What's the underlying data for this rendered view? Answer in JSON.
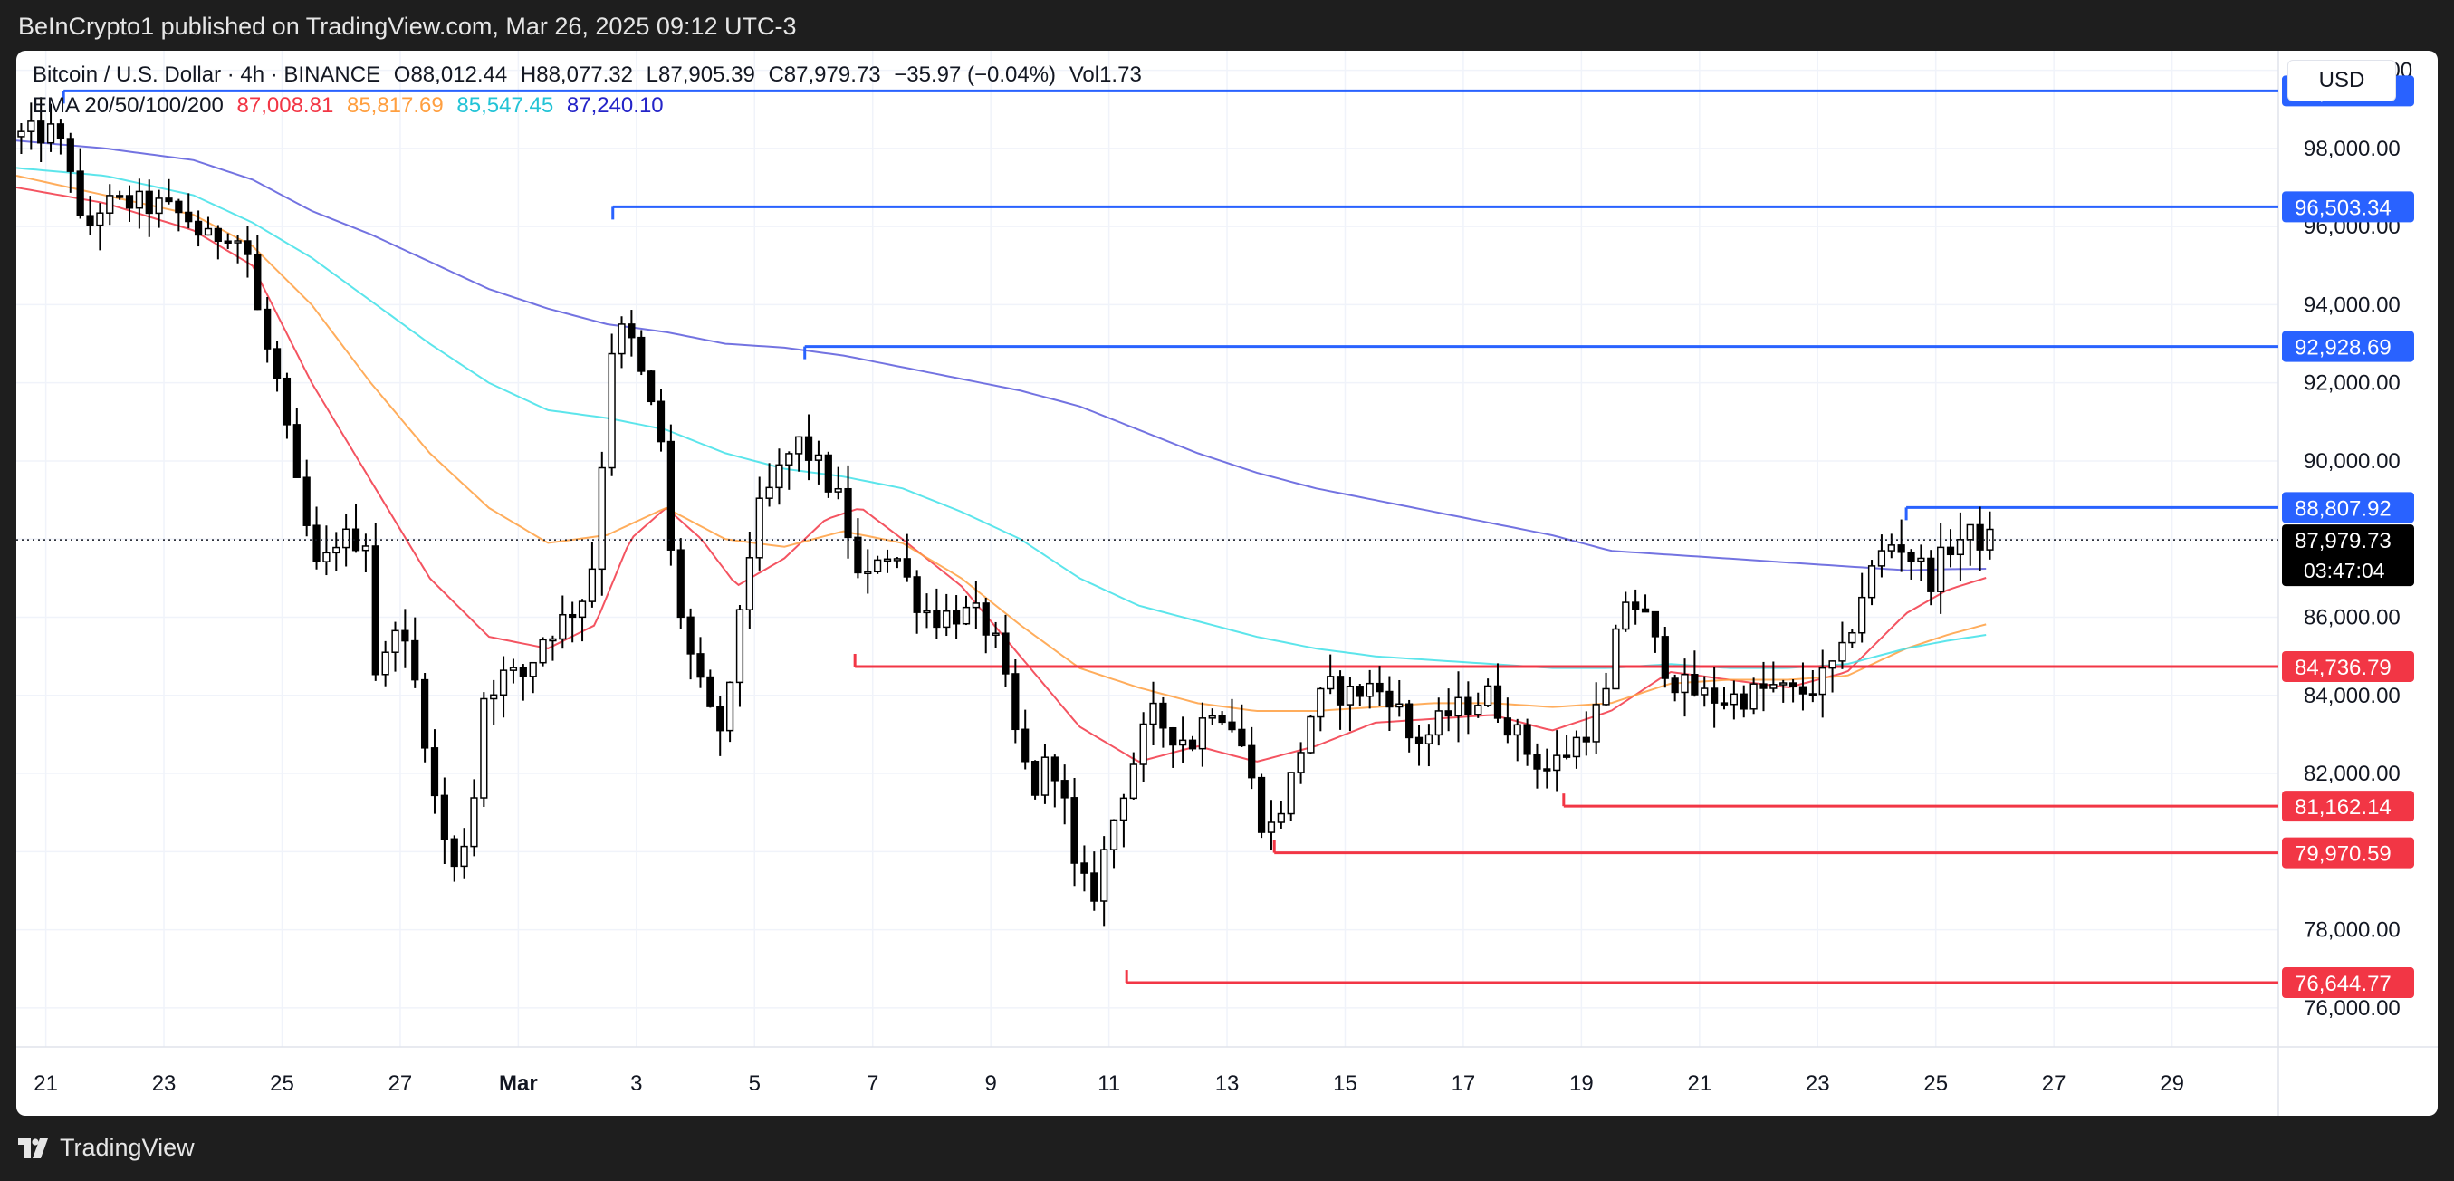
{
  "header": {
    "published_text": "BeInCrypto1 published on TradingView.com, Mar 26, 2025 09:12 UTC-3"
  },
  "legend": {
    "symbol": "Bitcoin / U.S. Dollar · 4h · BINANCE",
    "open": "O88,012.44",
    "high": "H88,077.32",
    "low": "L87,905.39",
    "close": "C87,979.73",
    "change": "−35.97 (−0.04%)",
    "volume": "Vol1.73",
    "ema_label": "EMA 20/50/100/200",
    "ema_values": [
      "87,008.81",
      "85,817.69",
      "85,547.45",
      "87,240.10"
    ]
  },
  "currency_button": "USD",
  "footer": {
    "brand": "TradingView"
  },
  "colors": {
    "up": "#ffffff",
    "down": "#000000",
    "ema20": "#f23645",
    "ema50": "#ff9f40",
    "ema100": "#40e0e8",
    "ema200": "#5b5bdc",
    "resistance": "#2962ff",
    "support": "#f23645",
    "grid": "#f0f3fa"
  },
  "chart_data": {
    "type": "candlestick",
    "title": "Bitcoin / U.S. Dollar · 4h · BINANCE",
    "ylim": [
      75000,
      100500
    ],
    "y_ticks": [
      "76,000.00",
      "78,000.00",
      "80,000.00",
      "82,000.00",
      "84,000.00",
      "86,000.00",
      "88,000.00",
      "90,000.00",
      "92,000.00",
      "94,000.00",
      "96,000.00",
      "98,000.00",
      "100,000.00"
    ],
    "x_ticks": [
      {
        "label": "21",
        "day": -7.5
      },
      {
        "label": "23",
        "day": -5.5
      },
      {
        "label": "25",
        "day": -3.5
      },
      {
        "label": "27",
        "day": -1.5
      },
      {
        "label": "Mar",
        "day": 0.5
      },
      {
        "label": "3",
        "day": 2.5
      },
      {
        "label": "5",
        "day": 4.5
      },
      {
        "label": "7",
        "day": 6.5
      },
      {
        "label": "9",
        "day": 8.5
      },
      {
        "label": "11",
        "day": 10.5
      },
      {
        "label": "13",
        "day": 12.5
      },
      {
        "label": "15",
        "day": 14.5
      },
      {
        "label": "17",
        "day": 16.5
      },
      {
        "label": "19",
        "day": 18.5
      },
      {
        "label": "21",
        "day": 20.5
      },
      {
        "label": "23",
        "day": 22.5
      },
      {
        "label": "25",
        "day": 24.5
      },
      {
        "label": "27",
        "day": 26.5
      },
      {
        "label": "29",
        "day": 28.5
      }
    ],
    "x_range": [
      -8.0,
      30.3
    ],
    "candle_range": [
      -8.0,
      25.35
    ],
    "last_price": {
      "value": 87979.73,
      "label": "87,979.73",
      "countdown": "03:47:04"
    },
    "resistance_levels": [
      {
        "value": 99472.29,
        "label": "99,472.29",
        "start_day": -7.2
      },
      {
        "value": 96503.34,
        "label": "96,503.34",
        "start_day": 2.1
      },
      {
        "value": 92928.69,
        "label": "92,928.69",
        "start_day": 5.35
      },
      {
        "value": 88807.92,
        "label": "88,807.92",
        "start_day": 24.0
      }
    ],
    "support_levels": [
      {
        "value": 84736.79,
        "label": "84,736.79",
        "start_day": 6.2
      },
      {
        "value": 81162.14,
        "label": "81,162.14",
        "start_day": 18.2
      },
      {
        "value": 79970.59,
        "label": "79,970.59",
        "start_day": 13.3
      },
      {
        "value": 76644.77,
        "label": "76,644.77",
        "start_day": 10.8
      }
    ],
    "close_path": [
      [
        -8.0,
        98300
      ],
      [
        -7.3,
        98400
      ],
      [
        -7.0,
        97600
      ],
      [
        -6.8,
        95700
      ],
      [
        -6.5,
        96500
      ],
      [
        -6.0,
        96600
      ],
      [
        -5.5,
        96500
      ],
      [
        -5.0,
        96200
      ],
      [
        -4.7,
        95600
      ],
      [
        -4.3,
        96000
      ],
      [
        -4.0,
        95300
      ],
      [
        -3.8,
        93500
      ],
      [
        -3.5,
        92000
      ],
      [
        -3.2,
        89500
      ],
      [
        -2.8,
        87000
      ],
      [
        -2.5,
        88000
      ],
      [
        -2.0,
        88000
      ],
      [
        -1.8,
        84000
      ],
      [
        -1.5,
        86000
      ],
      [
        -1.1,
        84000
      ],
      [
        -0.8,
        81000
      ],
      [
        -0.5,
        79500
      ],
      [
        -0.2,
        81000
      ],
      [
        0.0,
        84000
      ],
      [
        0.3,
        84500
      ],
      [
        0.7,
        84500
      ],
      [
        1.0,
        85500
      ],
      [
        1.4,
        86000
      ],
      [
        1.8,
        86800
      ],
      [
        2.0,
        90000
      ],
      [
        2.2,
        93500
      ],
      [
        2.5,
        93000
      ],
      [
        2.8,
        91500
      ],
      [
        3.0,
        90500
      ],
      [
        3.2,
        87000
      ],
      [
        3.5,
        85000
      ],
      [
        3.8,
        83500
      ],
      [
        4.1,
        83000
      ],
      [
        4.3,
        86000
      ],
      [
        4.6,
        88500
      ],
      [
        5.0,
        89700
      ],
      [
        5.3,
        90500
      ],
      [
        5.6,
        90000
      ],
      [
        6.0,
        89000
      ],
      [
        6.2,
        88000
      ],
      [
        6.4,
        86500
      ],
      [
        6.7,
        87800
      ],
      [
        7.0,
        87500
      ],
      [
        7.3,
        86500
      ],
      [
        7.6,
        86000
      ],
      [
        8.0,
        86100
      ],
      [
        8.4,
        86000
      ],
      [
        8.7,
        85200
      ],
      [
        9.0,
        83000
      ],
      [
        9.3,
        81500
      ],
      [
        9.6,
        82500
      ],
      [
        9.8,
        81500
      ],
      [
        10.0,
        79500
      ],
      [
        10.3,
        78800
      ],
      [
        10.6,
        80500
      ],
      [
        10.8,
        81500
      ],
      [
        11.0,
        82300
      ],
      [
        11.3,
        83500
      ],
      [
        11.7,
        83000
      ],
      [
        12.0,
        82800
      ],
      [
        12.3,
        83800
      ],
      [
        12.6,
        83500
      ],
      [
        12.9,
        82500
      ],
      [
        13.1,
        81000
      ],
      [
        13.3,
        80500
      ],
      [
        13.6,
        81500
      ],
      [
        14.0,
        83500
      ],
      [
        14.3,
        84200
      ],
      [
        14.6,
        84000
      ],
      [
        15.0,
        84200
      ],
      [
        15.4,
        84000
      ],
      [
        15.7,
        82800
      ],
      [
        16.0,
        83000
      ],
      [
        16.3,
        83500
      ],
      [
        16.7,
        83800
      ],
      [
        17.0,
        84000
      ],
      [
        17.4,
        83200
      ],
      [
        17.7,
        82500
      ],
      [
        18.0,
        82100
      ],
      [
        18.3,
        82500
      ],
      [
        18.7,
        83200
      ],
      [
        19.0,
        84000
      ],
      [
        19.3,
        86500
      ],
      [
        19.6,
        86200
      ],
      [
        19.9,
        85000
      ],
      [
        20.2,
        84300
      ],
      [
        20.6,
        84000
      ],
      [
        21.0,
        83900
      ],
      [
        21.4,
        84000
      ],
      [
        21.8,
        84200
      ],
      [
        22.2,
        84000
      ],
      [
        22.6,
        84300
      ],
      [
        23.0,
        85000
      ],
      [
        23.3,
        86500
      ],
      [
        23.6,
        87500
      ],
      [
        23.9,
        88000
      ],
      [
        24.2,
        87500
      ],
      [
        24.5,
        87000
      ],
      [
        24.8,
        87800
      ],
      [
        25.1,
        88100
      ],
      [
        25.35,
        87979.73
      ]
    ],
    "ema_series": [
      {
        "name": "EMA 20",
        "color": "#f23645",
        "points": [
          [
            -8.0,
            97000
          ],
          [
            -6.5,
            96600
          ],
          [
            -5.0,
            95900
          ],
          [
            -4.0,
            95000
          ],
          [
            -3.0,
            92000
          ],
          [
            -2.0,
            89500
          ],
          [
            -1.0,
            87000
          ],
          [
            0.0,
            85500
          ],
          [
            1.0,
            85200
          ],
          [
            1.8,
            85800
          ],
          [
            2.4,
            88000
          ],
          [
            3.0,
            88800
          ],
          [
            3.6,
            88000
          ],
          [
            4.2,
            86800
          ],
          [
            5.0,
            87500
          ],
          [
            5.7,
            88500
          ],
          [
            6.3,
            88800
          ],
          [
            7.0,
            88000
          ],
          [
            8.0,
            86800
          ],
          [
            9.0,
            85000
          ],
          [
            10.0,
            83200
          ],
          [
            11.0,
            82300
          ],
          [
            12.0,
            82700
          ],
          [
            13.0,
            82300
          ],
          [
            14.0,
            82700
          ],
          [
            15.0,
            83300
          ],
          [
            16.0,
            83400
          ],
          [
            17.0,
            83500
          ],
          [
            18.0,
            83100
          ],
          [
            19.0,
            83600
          ],
          [
            20.0,
            84600
          ],
          [
            21.0,
            84400
          ],
          [
            22.0,
            84200
          ],
          [
            23.0,
            84600
          ],
          [
            24.0,
            86100
          ],
          [
            24.7,
            86700
          ],
          [
            25.35,
            87008.81
          ]
        ]
      },
      {
        "name": "EMA 50",
        "color": "#ff9f40",
        "points": [
          [
            -8.0,
            97300
          ],
          [
            -6.5,
            96800
          ],
          [
            -5.0,
            96300
          ],
          [
            -4.0,
            95500
          ],
          [
            -3.0,
            94000
          ],
          [
            -2.0,
            92000
          ],
          [
            -1.0,
            90200
          ],
          [
            0.0,
            88800
          ],
          [
            1.0,
            87900
          ],
          [
            2.0,
            88100
          ],
          [
            3.0,
            88800
          ],
          [
            4.0,
            88000
          ],
          [
            5.0,
            87800
          ],
          [
            6.0,
            88200
          ],
          [
            7.0,
            87900
          ],
          [
            8.0,
            87000
          ],
          [
            9.0,
            85800
          ],
          [
            10.0,
            84700
          ],
          [
            11.0,
            84200
          ],
          [
            12.0,
            83800
          ],
          [
            13.0,
            83600
          ],
          [
            14.0,
            83600
          ],
          [
            15.0,
            83700
          ],
          [
            16.0,
            83800
          ],
          [
            17.0,
            83800
          ],
          [
            18.0,
            83700
          ],
          [
            19.0,
            83800
          ],
          [
            20.0,
            84300
          ],
          [
            21.0,
            84400
          ],
          [
            22.0,
            84400
          ],
          [
            23.0,
            84500
          ],
          [
            24.0,
            85200
          ],
          [
            24.7,
            85550
          ],
          [
            25.35,
            85817.69
          ]
        ]
      },
      {
        "name": "EMA 100",
        "color": "#40e0e8",
        "points": [
          [
            -8.0,
            97500
          ],
          [
            -6.5,
            97300
          ],
          [
            -5.0,
            96800
          ],
          [
            -4.0,
            96100
          ],
          [
            -3.0,
            95200
          ],
          [
            -2.0,
            94100
          ],
          [
            -1.0,
            93000
          ],
          [
            0.0,
            92000
          ],
          [
            1.0,
            91300
          ],
          [
            2.0,
            91100
          ],
          [
            3.0,
            90800
          ],
          [
            4.0,
            90200
          ],
          [
            5.0,
            89800
          ],
          [
            6.0,
            89600
          ],
          [
            7.0,
            89300
          ],
          [
            8.0,
            88700
          ],
          [
            9.0,
            88000
          ],
          [
            10.0,
            87000
          ],
          [
            11.0,
            86300
          ],
          [
            12.0,
            85900
          ],
          [
            13.0,
            85500
          ],
          [
            14.0,
            85200
          ],
          [
            15.0,
            85000
          ],
          [
            16.0,
            84900
          ],
          [
            17.0,
            84800
          ],
          [
            18.0,
            84700
          ],
          [
            19.0,
            84700
          ],
          [
            20.0,
            84800
          ],
          [
            21.0,
            84700
          ],
          [
            22.0,
            84700
          ],
          [
            23.0,
            84800
          ],
          [
            24.0,
            85200
          ],
          [
            24.7,
            85400
          ],
          [
            25.35,
            85547.45
          ]
        ]
      },
      {
        "name": "EMA 200",
        "color": "#5b5bdc",
        "points": [
          [
            -8.0,
            98200
          ],
          [
            -6.5,
            98000
          ],
          [
            -5.0,
            97700
          ],
          [
            -4.0,
            97200
          ],
          [
            -3.0,
            96400
          ],
          [
            -2.0,
            95800
          ],
          [
            -1.0,
            95100
          ],
          [
            0.0,
            94400
          ],
          [
            1.0,
            93900
          ],
          [
            2.0,
            93500
          ],
          [
            3.0,
            93300
          ],
          [
            4.0,
            93000
          ],
          [
            5.0,
            92900
          ],
          [
            6.0,
            92700
          ],
          [
            7.0,
            92400
          ],
          [
            8.0,
            92100
          ],
          [
            9.0,
            91800
          ],
          [
            10.0,
            91400
          ],
          [
            11.0,
            90800
          ],
          [
            12.0,
            90200
          ],
          [
            13.0,
            89700
          ],
          [
            14.0,
            89300
          ],
          [
            15.0,
            89000
          ],
          [
            16.0,
            88700
          ],
          [
            17.0,
            88400
          ],
          [
            18.0,
            88100
          ],
          [
            19.0,
            87700
          ],
          [
            20.0,
            87600
          ],
          [
            21.0,
            87500
          ],
          [
            22.0,
            87400
          ],
          [
            23.0,
            87300
          ],
          [
            24.0,
            87200
          ],
          [
            24.7,
            87230
          ],
          [
            25.35,
            87240.1
          ]
        ]
      }
    ]
  }
}
